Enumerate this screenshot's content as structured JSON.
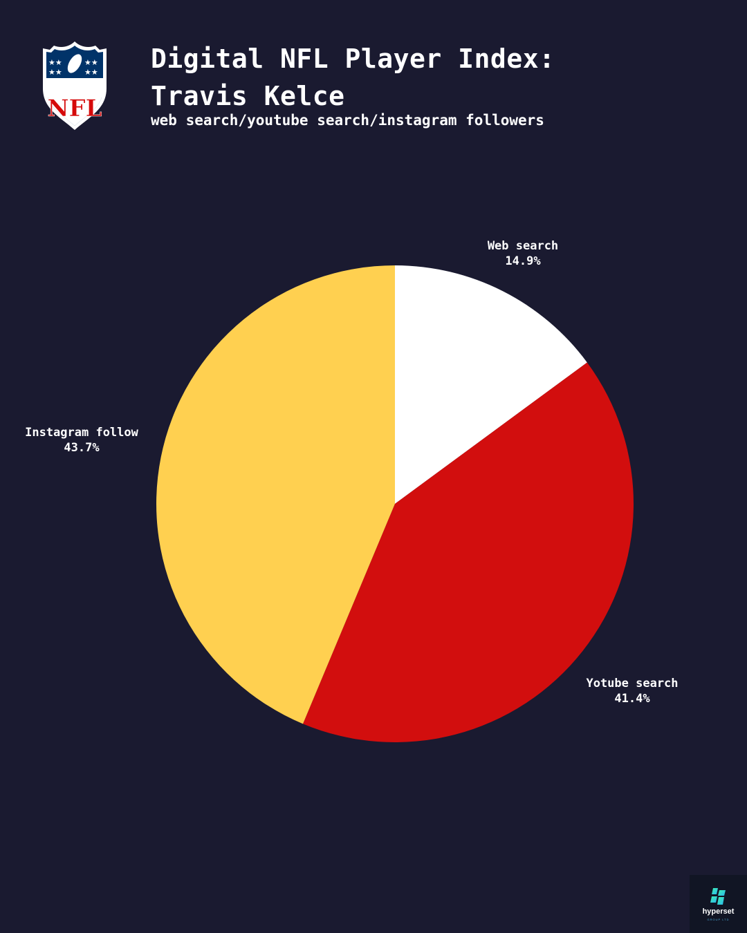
{
  "header": {
    "title_line1": "Digital NFL Player Index:",
    "title_line2": "Travis Kelce",
    "subtitle": "web search/youtube search/instagram followers",
    "logo_icon": "nfl-shield-logo"
  },
  "chart_data": {
    "type": "pie",
    "title": "Digital NFL Player Index: Travis Kelce",
    "subtitle": "web search/youtube search/instagram followers",
    "categories": [
      "Web search",
      "Yotube search",
      "Instagram follow"
    ],
    "values": [
      14.9,
      41.4,
      43.7
    ],
    "labels": [
      "14.9%",
      "41.4%",
      "43.7%"
    ],
    "colors": [
      "#ffffff",
      "#d20e0e",
      "#ffd050"
    ],
    "start_angle": "12 o'clock, clockwise",
    "legend": "none (labels outside slices)"
  },
  "labels": {
    "web": {
      "name": "Web search",
      "pct": "14.9%"
    },
    "youtube": {
      "name": "Yotube search",
      "pct": "41.4%"
    },
    "instagram": {
      "name": "Instagram follow",
      "pct": "43.7%"
    }
  },
  "brand": {
    "name": "hyperset",
    "sub": "GROUP LTD"
  },
  "colors": {
    "background": "#1a1a30",
    "nfl_blue": "#013369",
    "nfl_red": "#d50a0a"
  }
}
